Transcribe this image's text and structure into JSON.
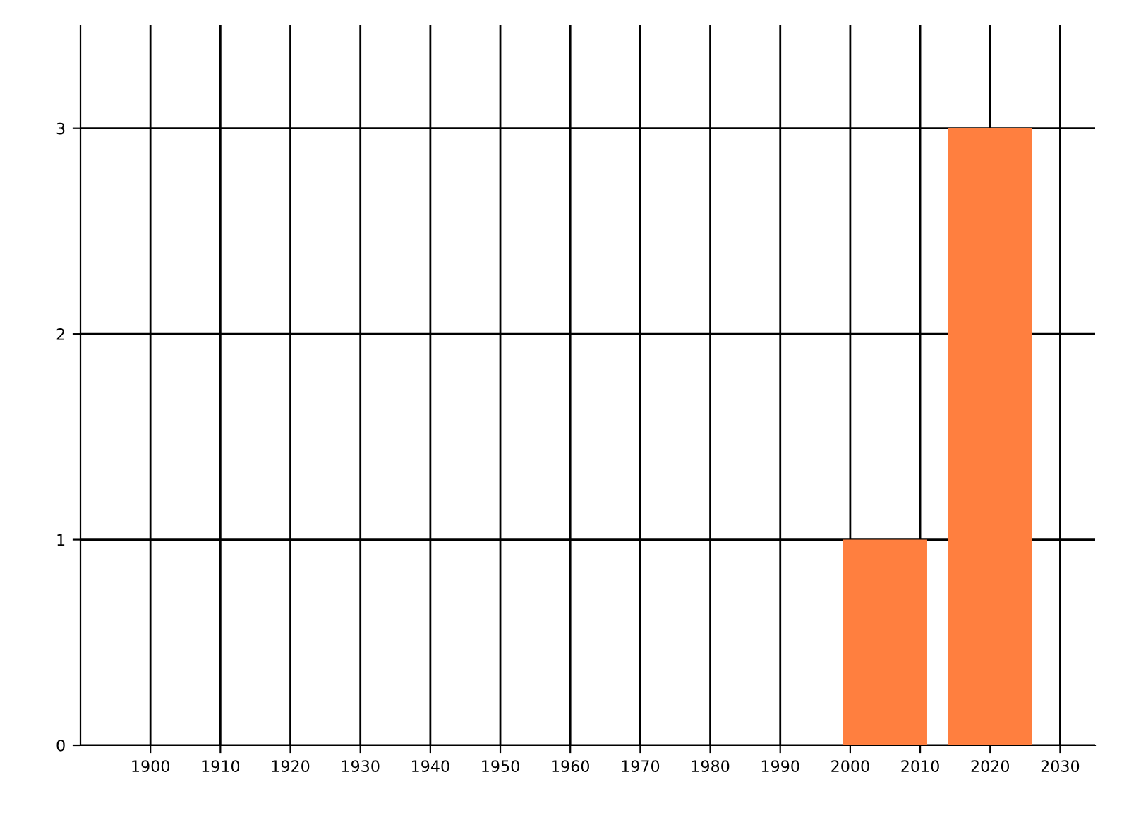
{
  "chart_data": {
    "type": "bar",
    "x": [
      2005,
      2020
    ],
    "values": [
      1,
      3
    ],
    "color": "#ff7f3f",
    "xlim": [
      1890,
      2035
    ],
    "xticks": [
      1900,
      1910,
      1920,
      1930,
      1940,
      1950,
      1960,
      1970,
      1980,
      1990,
      2000,
      2010,
      2020,
      2030
    ],
    "ylim": [
      0,
      3.5
    ],
    "yticks": [
      0,
      1,
      2,
      3
    ],
    "grid": true
  }
}
